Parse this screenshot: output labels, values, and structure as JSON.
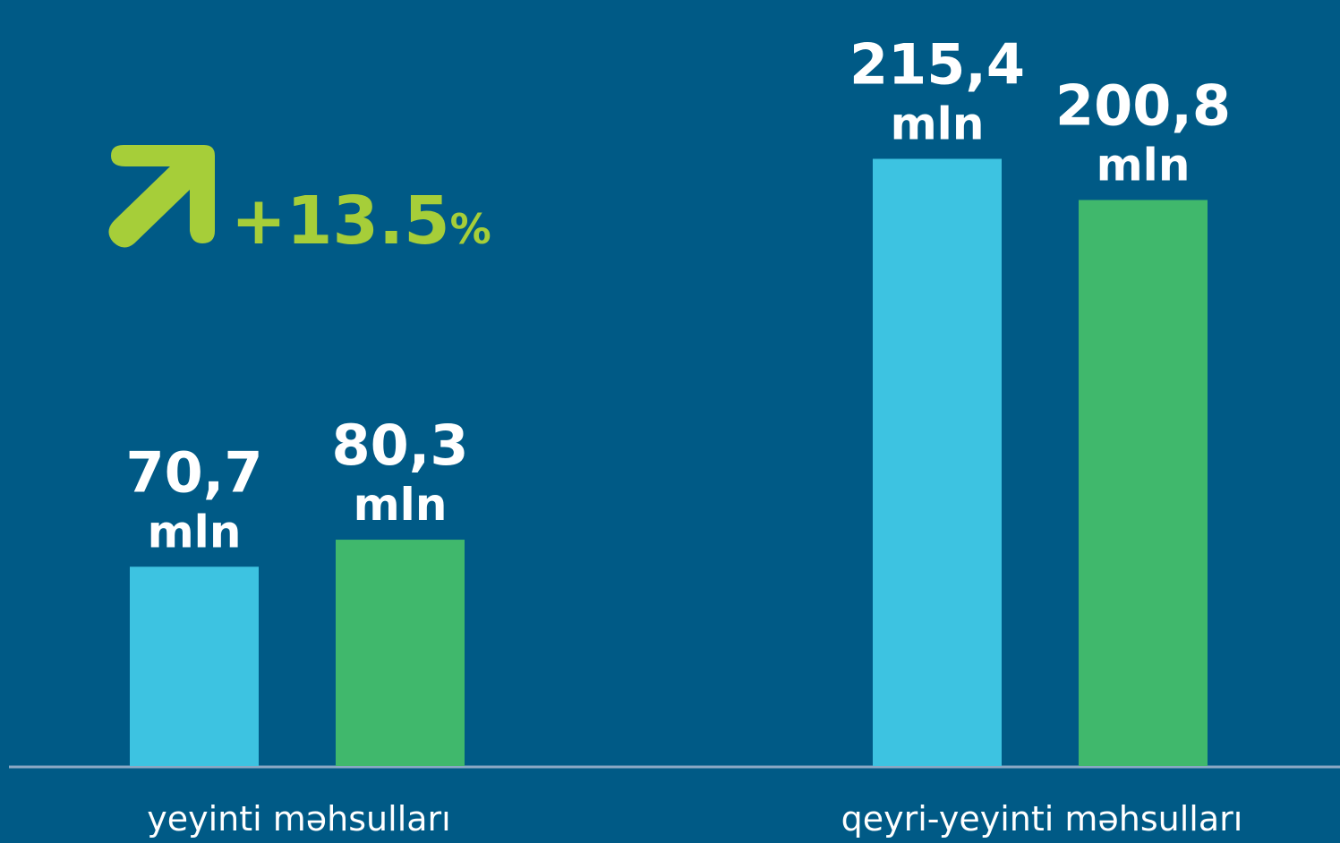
{
  "chart_data": {
    "type": "bar",
    "categories": [
      "yeyinti məhsulları",
      "qeyri-yeyinti məhsulları"
    ],
    "series": [
      {
        "color": "#3dc3e1",
        "values": [
          70.7,
          215.4
        ],
        "value_labels": [
          "70,7",
          "215,4"
        ]
      },
      {
        "color": "#40b86c",
        "values": [
          80.3,
          200.8
        ],
        "value_labels": [
          "80,3",
          "200,8"
        ]
      }
    ],
    "unit": "mln",
    "annotation": {
      "text": "+13.5",
      "unit": "%"
    },
    "ylim": [
      0,
      240
    ]
  }
}
